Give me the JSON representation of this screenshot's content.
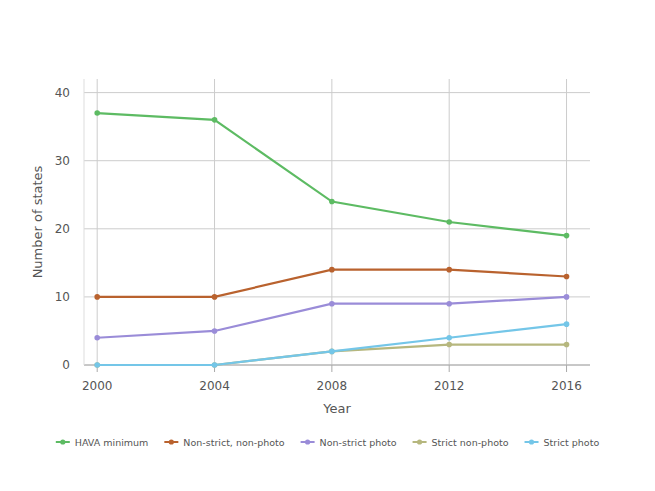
{
  "chart_data": {
    "type": "line",
    "x_label": "Year",
    "y_label": "Number of states",
    "x": [
      2000,
      2004,
      2008,
      2012,
      2016
    ],
    "series": [
      {
        "name": "HAVA minimum",
        "color": "#5dbb63",
        "values": [
          37,
          36,
          24,
          21,
          19
        ]
      },
      {
        "name": "Non-strict, non-photo",
        "color": "#b9622e",
        "values": [
          10,
          10,
          14,
          14,
          13
        ]
      },
      {
        "name": "Non-strict photo",
        "color": "#9a8cd8",
        "values": [
          4,
          5,
          9,
          9,
          10
        ]
      },
      {
        "name": "Strict non-photo",
        "color": "#b6b77e",
        "values": [
          0,
          0,
          2,
          3,
          3
        ]
      },
      {
        "name": "Strict photo",
        "color": "#74c6e8",
        "values": [
          0,
          0,
          2,
          4,
          6
        ]
      }
    ],
    "xlim": [
      1999.55,
      2016.8
    ],
    "ylim": [
      0,
      42
    ],
    "xticks": [
      2000,
      2004,
      2008,
      2012,
      2016
    ],
    "yticks": [
      0,
      10,
      20,
      30,
      40
    ],
    "grid": true,
    "legend": "bottom",
    "marker": "circle"
  }
}
